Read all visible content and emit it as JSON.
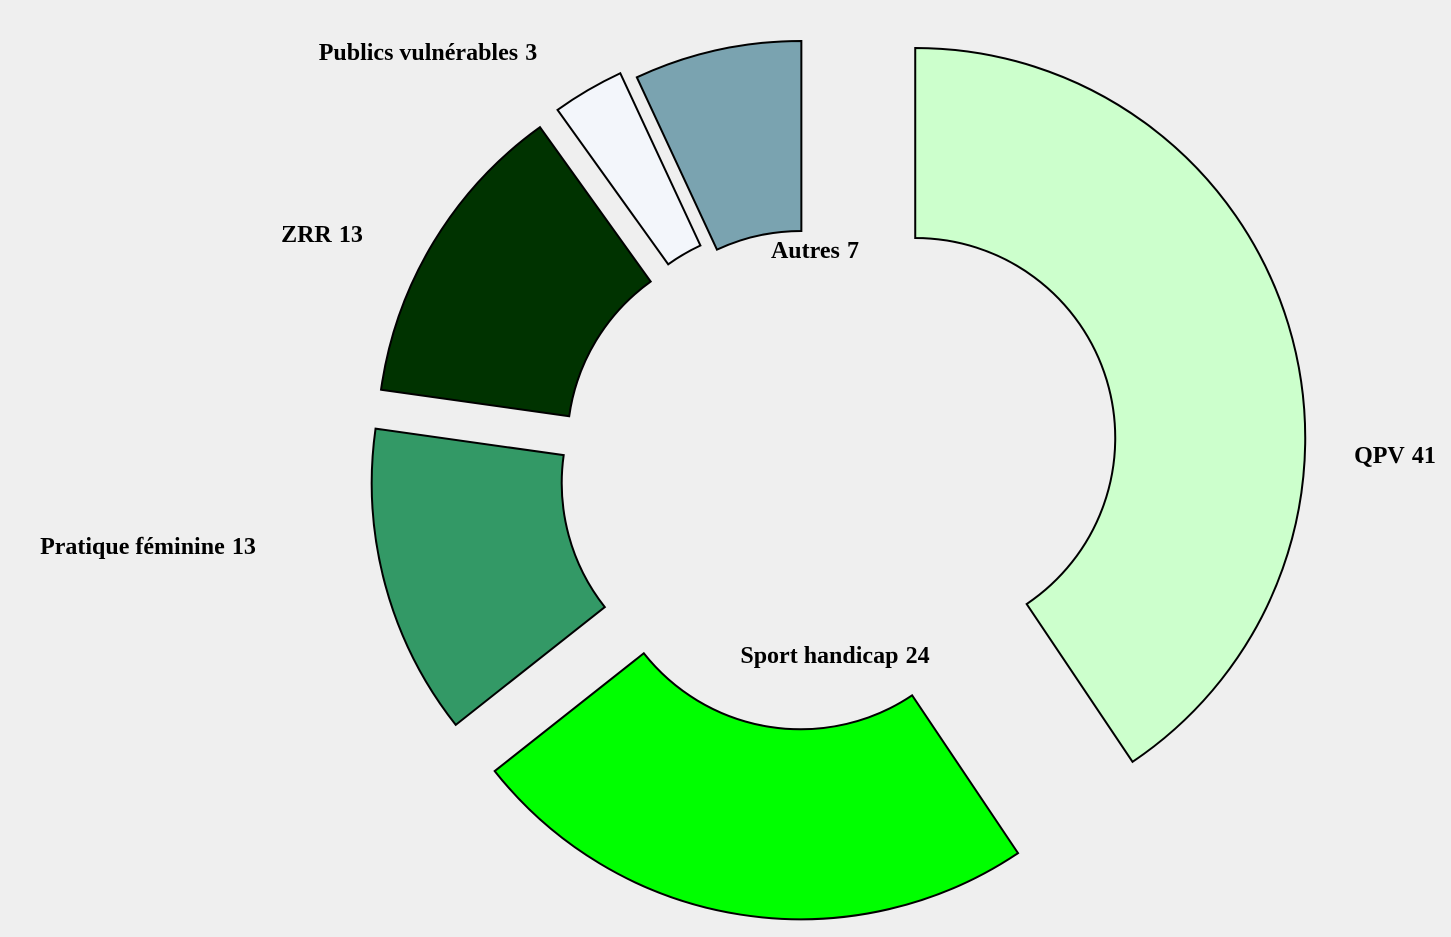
{
  "chart_data": {
    "type": "donut",
    "categories": [
      "QPV",
      "Sport handicap",
      "Pratique féminine",
      "ZRR",
      "Publics vulnérables",
      "Autres"
    ],
    "values": [
      41,
      24,
      13,
      13,
      3,
      7
    ],
    "colors": [
      "#ccffcc",
      "#00ff00",
      "#339966",
      "#003300",
      "#f3f6fb",
      "#7aa3b0"
    ]
  }
}
